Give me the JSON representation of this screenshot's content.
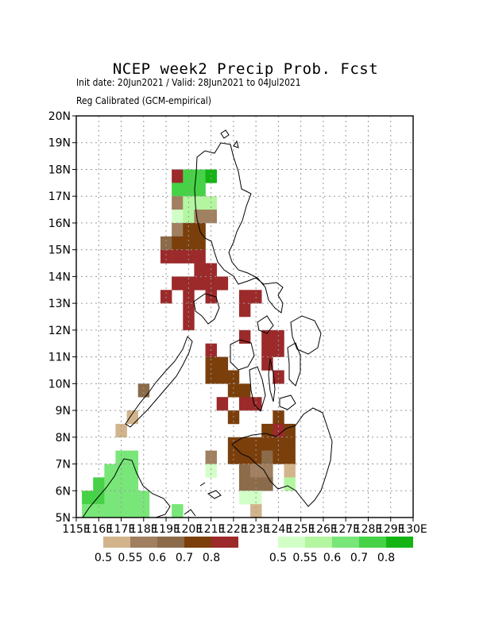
{
  "title": "NCEP week2 Precip Prob. Fcst",
  "subtitle1": "Init date: 20Jun2021 / Valid: 28Jun2021 to 04Jul2021",
  "subtitle2": "Reg Calibrated (GCM-empirical)",
  "map": {
    "lon_range": [
      115,
      130
    ],
    "lat_range": [
      5,
      20
    ],
    "grid_step_deg": 1,
    "grid_lines": "dotted",
    "lat_ticks": [
      "5N",
      "6N",
      "7N",
      "8N",
      "9N",
      "10N",
      "11N",
      "12N",
      "13N",
      "14N",
      "15N",
      "16N",
      "17N",
      "18N",
      "19N",
      "20N"
    ],
    "lon_ticks": [
      "115E",
      "116E",
      "117E",
      "118E",
      "119E",
      "120E",
      "121E",
      "122E",
      "123E",
      "124E",
      "125E",
      "126E",
      "127E",
      "128E",
      "129E",
      "130E"
    ]
  },
  "legends": {
    "dry": {
      "colors": [
        "#d2b48c",
        "#a08060",
        "#8b6b4a",
        "#7b3f0c",
        "#9c2a2a"
      ],
      "labels": [
        "0.5",
        "0.55",
        "0.6",
        "0.7",
        "0.8"
      ]
    },
    "wet": {
      "colors": [
        "#d2ffc8",
        "#b4f5a0",
        "#78e678",
        "#46d246",
        "#14b414"
      ],
      "labels": [
        "0.5",
        "0.55",
        "0.6",
        "0.7",
        "0.8"
      ]
    }
  },
  "cells": [
    {
      "lon": 119.5,
      "lat": 17.75,
      "c": 4
    },
    {
      "lon": 120.0,
      "lat": 17.75,
      "c": 8
    },
    {
      "lon": 120.5,
      "lat": 17.75,
      "c": 8
    },
    {
      "lon": 121.0,
      "lat": 17.75,
      "c": 9
    },
    {
      "lon": 119.5,
      "lat": 17.25,
      "c": 8
    },
    {
      "lon": 120.0,
      "lat": 17.25,
      "c": 8
    },
    {
      "lon": 120.5,
      "lat": 17.25,
      "c": 8
    },
    {
      "lon": 119.5,
      "lat": 16.75,
      "c": 1
    },
    {
      "lon": 120.0,
      "lat": 16.75,
      "c": 6
    },
    {
      "lon": 120.5,
      "lat": 16.75,
      "c": 6
    },
    {
      "lon": 121.0,
      "lat": 16.75,
      "c": 6
    },
    {
      "lon": 119.5,
      "lat": 16.25,
      "c": 5
    },
    {
      "lon": 120.0,
      "lat": 16.25,
      "c": 6
    },
    {
      "lon": 120.5,
      "lat": 16.25,
      "c": 1
    },
    {
      "lon": 121.0,
      "lat": 16.25,
      "c": 1
    },
    {
      "lon": 119.5,
      "lat": 15.75,
      "c": 1
    },
    {
      "lon": 120.0,
      "lat": 15.75,
      "c": 3
    },
    {
      "lon": 120.5,
      "lat": 15.75,
      "c": 3
    },
    {
      "lon": 119.0,
      "lat": 15.25,
      "c": 2
    },
    {
      "lon": 119.5,
      "lat": 15.25,
      "c": 3
    },
    {
      "lon": 120.0,
      "lat": 15.25,
      "c": 3
    },
    {
      "lon": 120.5,
      "lat": 15.25,
      "c": 3
    },
    {
      "lon": 119.0,
      "lat": 14.75,
      "c": 4
    },
    {
      "lon": 119.5,
      "lat": 14.75,
      "c": 4
    },
    {
      "lon": 120.0,
      "lat": 14.75,
      "c": 4
    },
    {
      "lon": 120.5,
      "lat": 14.75,
      "c": 4
    },
    {
      "lon": 120.5,
      "lat": 14.25,
      "c": 4
    },
    {
      "lon": 121.0,
      "lat": 14.25,
      "c": 4
    },
    {
      "lon": 119.5,
      "lat": 13.75,
      "c": 4
    },
    {
      "lon": 120.0,
      "lat": 13.75,
      "c": 4
    },
    {
      "lon": 120.5,
      "lat": 13.75,
      "c": 4
    },
    {
      "lon": 121.0,
      "lat": 13.75,
      "c": 4
    },
    {
      "lon": 121.5,
      "lat": 13.75,
      "c": 4
    },
    {
      "lon": 119.0,
      "lat": 13.25,
      "c": 4
    },
    {
      "lon": 120.0,
      "lat": 13.25,
      "c": 4
    },
    {
      "lon": 121.0,
      "lat": 13.25,
      "c": 4
    },
    {
      "lon": 122.5,
      "lat": 13.25,
      "c": 4
    },
    {
      "lon": 123.0,
      "lat": 13.25,
      "c": 4
    },
    {
      "lon": 120.0,
      "lat": 12.75,
      "c": 4
    },
    {
      "lon": 122.5,
      "lat": 12.75,
      "c": 4
    },
    {
      "lon": 120.0,
      "lat": 12.25,
      "c": 4
    },
    {
      "lon": 122.5,
      "lat": 11.75,
      "c": 4
    },
    {
      "lon": 123.5,
      "lat": 11.75,
      "c": 4
    },
    {
      "lon": 124.0,
      "lat": 11.75,
      "c": 4
    },
    {
      "lon": 121.0,
      "lat": 11.25,
      "c": 4
    },
    {
      "lon": 123.5,
      "lat": 11.25,
      "c": 4
    },
    {
      "lon": 124.0,
      "lat": 11.25,
      "c": 4
    },
    {
      "lon": 121.0,
      "lat": 10.75,
      "c": 3
    },
    {
      "lon": 121.5,
      "lat": 10.75,
      "c": 3
    },
    {
      "lon": 123.5,
      "lat": 10.75,
      "c": 4
    },
    {
      "lon": 121.0,
      "lat": 10.25,
      "c": 3
    },
    {
      "lon": 121.5,
      "lat": 10.25,
      "c": 3
    },
    {
      "lon": 122.0,
      "lat": 10.25,
      "c": 3
    },
    {
      "lon": 124.0,
      "lat": 10.25,
      "c": 4
    },
    {
      "lon": 118.0,
      "lat": 9.75,
      "c": 2
    },
    {
      "lon": 122.0,
      "lat": 9.75,
      "c": 3
    },
    {
      "lon": 122.5,
      "lat": 9.75,
      "c": 3
    },
    {
      "lon": 121.5,
      "lat": 9.25,
      "c": 4
    },
    {
      "lon": 122.5,
      "lat": 9.25,
      "c": 4
    },
    {
      "lon": 123.0,
      "lat": 9.25,
      "c": 4
    },
    {
      "lon": 117.5,
      "lat": 8.75,
      "c": 0
    },
    {
      "lon": 122.0,
      "lat": 8.75,
      "c": 3
    },
    {
      "lon": 124.0,
      "lat": 8.75,
      "c": 3
    },
    {
      "lon": 117.0,
      "lat": 8.25,
      "c": 0
    },
    {
      "lon": 123.5,
      "lat": 8.25,
      "c": 3
    },
    {
      "lon": 124.0,
      "lat": 8.25,
      "c": 4
    },
    {
      "lon": 124.5,
      "lat": 8.25,
      "c": 3
    },
    {
      "lon": 122.0,
      "lat": 7.75,
      "c": 3
    },
    {
      "lon": 122.5,
      "lat": 7.75,
      "c": 3
    },
    {
      "lon": 123.0,
      "lat": 7.75,
      "c": 3
    },
    {
      "lon": 123.5,
      "lat": 7.75,
      "c": 3
    },
    {
      "lon": 124.0,
      "lat": 7.75,
      "c": 3
    },
    {
      "lon": 124.5,
      "lat": 7.75,
      "c": 3
    },
    {
      "lon": 121.0,
      "lat": 7.25,
      "c": 1
    },
    {
      "lon": 122.0,
      "lat": 7.25,
      "c": 3
    },
    {
      "lon": 122.5,
      "lat": 7.25,
      "c": 3
    },
    {
      "lon": 123.0,
      "lat": 7.25,
      "c": 3
    },
    {
      "lon": 123.5,
      "lat": 7.25,
      "c": 2
    },
    {
      "lon": 124.0,
      "lat": 7.25,
      "c": 3
    },
    {
      "lon": 124.5,
      "lat": 7.25,
      "c": 3
    },
    {
      "lon": 121.0,
      "lat": 6.75,
      "c": 5
    },
    {
      "lon": 122.5,
      "lat": 6.75,
      "c": 2
    },
    {
      "lon": 123.0,
      "lat": 6.75,
      "c": 1
    },
    {
      "lon": 123.5,
      "lat": 6.75,
      "c": 1
    },
    {
      "lon": 124.5,
      "lat": 6.75,
      "c": 0
    },
    {
      "lon": 122.5,
      "lat": 6.25,
      "c": 2
    },
    {
      "lon": 123.0,
      "lat": 6.25,
      "c": 2
    },
    {
      "lon": 123.5,
      "lat": 6.25,
      "c": 2
    },
    {
      "lon": 124.5,
      "lat": 6.25,
      "c": 6
    },
    {
      "lon": 122.5,
      "lat": 5.75,
      "c": 5
    },
    {
      "lon": 123.0,
      "lat": 5.75,
      "c": 5
    },
    {
      "lon": 123.0,
      "lat": 5.25,
      "c": 0
    },
    {
      "lon": 117.0,
      "lat": 7.25,
      "c": 7
    },
    {
      "lon": 117.5,
      "lat": 7.25,
      "c": 7
    },
    {
      "lon": 116.5,
      "lat": 6.75,
      "c": 7
    },
    {
      "lon": 117.0,
      "lat": 6.75,
      "c": 7
    },
    {
      "lon": 117.5,
      "lat": 6.75,
      "c": 7
    },
    {
      "lon": 116.0,
      "lat": 6.25,
      "c": 8
    },
    {
      "lon": 116.5,
      "lat": 6.25,
      "c": 7
    },
    {
      "lon": 117.0,
      "lat": 6.25,
      "c": 7
    },
    {
      "lon": 117.5,
      "lat": 6.25,
      "c": 7
    },
    {
      "lon": 115.5,
      "lat": 5.75,
      "c": 8
    },
    {
      "lon": 116.0,
      "lat": 5.75,
      "c": 8
    },
    {
      "lon": 116.5,
      "lat": 5.75,
      "c": 7
    },
    {
      "lon": 117.0,
      "lat": 5.75,
      "c": 7
    },
    {
      "lon": 117.5,
      "lat": 5.75,
      "c": 7
    },
    {
      "lon": 118.0,
      "lat": 5.75,
      "c": 7
    },
    {
      "lon": 115.5,
      "lat": 5.25,
      "c": 7
    },
    {
      "lon": 116.0,
      "lat": 5.25,
      "c": 7
    },
    {
      "lon": 116.5,
      "lat": 5.25,
      "c": 7
    },
    {
      "lon": 117.0,
      "lat": 5.25,
      "c": 7
    },
    {
      "lon": 117.5,
      "lat": 5.25,
      "c": 7
    },
    {
      "lon": 118.0,
      "lat": 5.25,
      "c": 7
    },
    {
      "lon": 119.5,
      "lat": 5.25,
      "c": 7
    }
  ]
}
